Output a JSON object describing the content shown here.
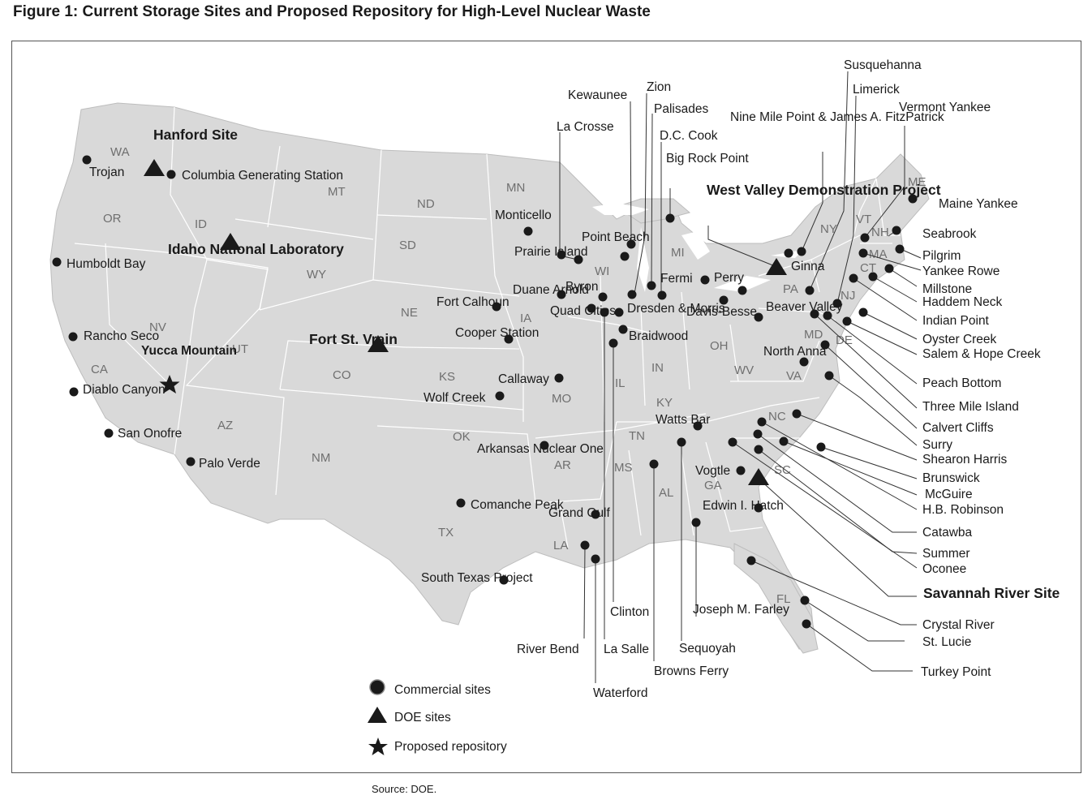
{
  "title": "Figure 1: Current Storage Sites and Proposed Repository for High-Level Nuclear Waste",
  "source": "Source: DOE.",
  "legend": {
    "commercial": "Commercial sites",
    "doe": "DOE sites",
    "repository": "Proposed repository"
  },
  "states": [
    "WA",
    "OR",
    "CA",
    "ID",
    "NV",
    "MT",
    "WY",
    "UT",
    "AZ",
    "CO",
    "NM",
    "ND",
    "SD",
    "NE",
    "KS",
    "OK",
    "TX",
    "MN",
    "IA",
    "MO",
    "AR",
    "LA",
    "WI",
    "IL",
    "MI",
    "IN",
    "KY",
    "TN",
    "MS",
    "AL",
    "GA",
    "FL",
    "SC",
    "NC",
    "VA",
    "WV",
    "OH",
    "PA",
    "NY",
    "MD",
    "DE",
    "NJ",
    "CT",
    "MA",
    "VT",
    "NH",
    "ME"
  ],
  "doe_sites": [
    {
      "name": "Hanford Site"
    },
    {
      "name": "Idaho National Laboratory"
    },
    {
      "name": "Fort St. Vrain"
    },
    {
      "name": "West Valley Demonstration Project"
    },
    {
      "name": "Savannah River Site"
    }
  ],
  "proposed_repository": {
    "name": "Yucca Mountain"
  },
  "commercial_sites": [
    "Trojan",
    "Columbia Generating Station",
    "Humboldt Bay",
    "Rancho Seco",
    "Diablo Canyon",
    "San Onofre",
    "Palo Verde",
    "Monticello",
    "Prairie Island",
    "Fort Calhoun",
    "Cooper Station",
    "Wolf Creek",
    "Callaway",
    "Arkansas Nuclear One",
    "Comanche Peak",
    "South Texas Project",
    "Grand Gulf",
    "River Bend",
    "Waterford",
    "La Salle",
    "Clinton",
    "Duane Arnold",
    "Quad Cities",
    "Byron",
    "Dresden & Morris",
    "Braidwood",
    "Kewaunee",
    "Point Beach",
    "La Crosse",
    "Zion",
    "Palisades",
    "D.C. Cook",
    "Big Rock Point",
    "Fermi",
    "Perry",
    "Davis-Besse",
    "Beaver Valley",
    "Nine Mile Point & James A. FitzPatrick",
    "Ginna",
    "Susquehanna",
    "Limerick",
    "Vermont Yankee",
    "Maine Yankee",
    "Seabrook",
    "Pilgrim",
    "Yankee Rowe",
    "Millstone",
    "Haddem Neck",
    "Indian Point",
    "Oyster Creek",
    "Salem & Hope Creek",
    "Peach Bottom",
    "Three Mile Island",
    "Calvert Cliffs",
    "North Anna",
    "Surry",
    "Shearon Harris",
    "Brunswick",
    "McGuire",
    "H.B. Robinson",
    "Catawba",
    "Summer",
    "Oconee",
    "Watts Bar",
    "Sequoyah",
    "Browns Ferry",
    "Joseph M. Farley",
    "Vogtle",
    "Edwin I. Hatch",
    "Crystal River",
    "St. Lucie",
    "Turkey Point"
  ]
}
